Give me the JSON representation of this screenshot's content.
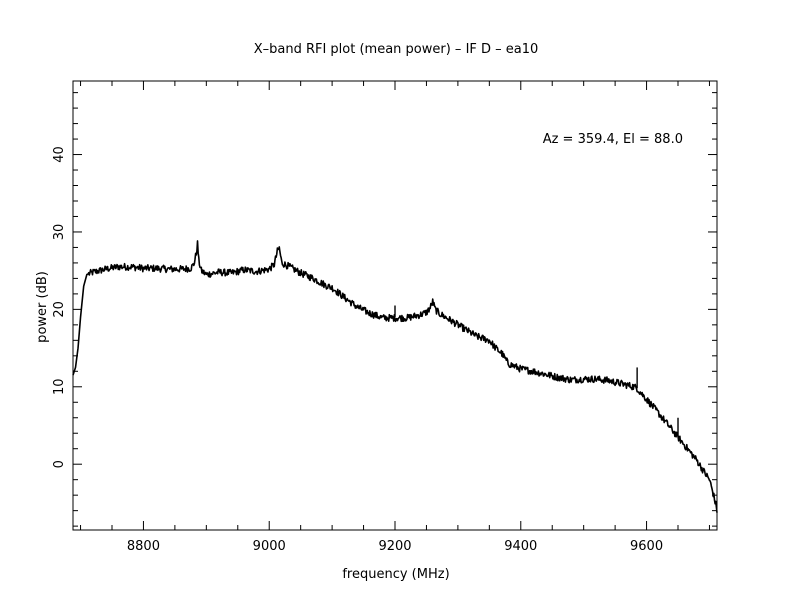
{
  "chart_data": {
    "type": "line",
    "title": "X–band RFI plot (mean power) – IF D – ea10",
    "xlabel": "frequency (MHz)",
    "ylabel": "power (dB)",
    "annotation": "Az = 359.4, El = 88.0",
    "xlim": [
      8688,
      9712
    ],
    "ylim": [
      -8.5,
      49.5
    ],
    "xticks": [
      8800,
      9000,
      9200,
      9400,
      9600
    ],
    "yticks": [
      0,
      10,
      20,
      30,
      40
    ],
    "xtick_labels": [
      "8800",
      "9000",
      "9200",
      "9400",
      "9600"
    ],
    "ytick_labels": [
      "0",
      "10",
      "20",
      "30",
      "40"
    ],
    "grid": false,
    "legend": "none",
    "line_color": "#000000",
    "series": [
      {
        "x": [
          8688,
          8692,
          8696,
          8700,
          8705,
          8710,
          8720,
          8740,
          8760,
          8780,
          8800,
          8820,
          8840,
          8860,
          8875,
          8880,
          8884,
          8886,
          8888,
          8892,
          8900,
          8920,
          8940,
          8960,
          8980,
          9000,
          9008,
          9013,
          9016,
          9020,
          9030,
          9050,
          9070,
          9090,
          9100,
          9120,
          9140,
          9160,
          9180,
          9200,
          9220,
          9240,
          9250,
          9256,
          9260,
          9264,
          9270,
          9290,
          9310,
          9330,
          9350,
          9360,
          9370,
          9380,
          9400,
          9420,
          9440,
          9460,
          9480,
          9500,
          9520,
          9540,
          9560,
          9575,
          9580,
          9585,
          9590,
          9600,
          9620,
          9640,
          9650,
          9660,
          9680,
          9690,
          9700,
          9706,
          9710,
          9712
        ],
        "y": [
          11.5,
          12.5,
          15.0,
          19.0,
          23.0,
          24.5,
          24.8,
          25.2,
          25.5,
          25.5,
          25.3,
          25.3,
          25.2,
          25.2,
          25.3,
          25.8,
          27.2,
          28.5,
          26.3,
          25.0,
          24.5,
          24.8,
          24.7,
          25.1,
          24.9,
          25.2,
          25.8,
          27.5,
          27.9,
          26.0,
          25.6,
          24.7,
          24.0,
          23.1,
          22.8,
          21.5,
          20.3,
          19.5,
          18.9,
          18.9,
          18.9,
          19.3,
          19.6,
          20.2,
          21.0,
          20.0,
          19.5,
          18.5,
          17.5,
          16.5,
          16.0,
          15.0,
          14.3,
          13.0,
          12.3,
          12.0,
          11.6,
          11.2,
          10.9,
          11.0,
          11.0,
          10.8,
          10.4,
          10.1,
          10.0,
          9.8,
          9.3,
          8.4,
          6.5,
          4.5,
          3.5,
          2.5,
          0.5,
          -0.8,
          -2.0,
          -3.8,
          -5.2,
          -6.0
        ]
      }
    ],
    "spikes": [
      {
        "x": 9200,
        "y": 19.0,
        "top": 20.5
      },
      {
        "x": 9585,
        "y": 9.8,
        "top": 12.5
      },
      {
        "x": 9650,
        "y": 3.5,
        "top": 6.0
      }
    ]
  }
}
